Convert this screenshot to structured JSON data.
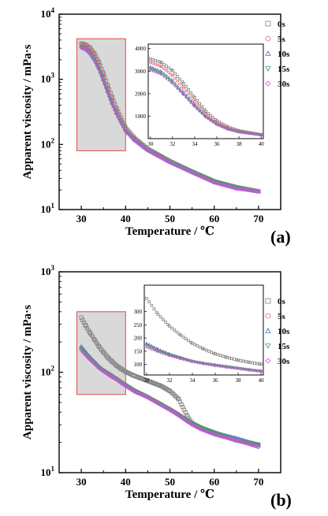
{
  "chart_data": [
    {
      "type": "scatter",
      "panel_label": "(a)",
      "xlabel": "Temperature / ℃",
      "ylabel": "Apparent viscosity / mPa·s",
      "y_scale": "log",
      "xlim": [
        25,
        75
      ],
      "ylim": [
        10,
        10000
      ],
      "x_ticks": [
        "30",
        "40",
        "50",
        "60",
        "70"
      ],
      "y_ticks": [
        {
          "base": "10",
          "exp": "1"
        },
        {
          "base": "10",
          "exp": "2"
        },
        {
          "base": "10",
          "exp": "3"
        },
        {
          "base": "10",
          "exp": "4"
        }
      ],
      "highlight_box": {
        "x": [
          29,
          40
        ],
        "y": [
          80,
          4200
        ]
      },
      "series": [
        {
          "name": "0s",
          "color": "#808080",
          "marker": "square",
          "x": [
            30,
            31,
            32,
            33,
            34,
            35,
            36,
            37,
            38,
            40,
            42,
            45,
            50,
            55,
            60,
            65,
            70
          ],
          "y": [
            3550,
            3380,
            3020,
            2450,
            1820,
            1220,
            790,
            520,
            350,
            180,
            125,
            85,
            55,
            38,
            27,
            22,
            19
          ]
        },
        {
          "name": "5s",
          "color": "#e8606a",
          "marker": "circle",
          "x": [
            30,
            31,
            32,
            33,
            34,
            35,
            36,
            37,
            38,
            40,
            42,
            45,
            50,
            55,
            60,
            65,
            70
          ],
          "y": [
            3400,
            3200,
            2800,
            2250,
            1650,
            1100,
            710,
            470,
            320,
            170,
            120,
            83,
            54,
            38,
            27,
            22,
            19
          ]
        },
        {
          "name": "10s",
          "color": "#4a6fd0",
          "marker": "triangle-up",
          "x": [
            30,
            31,
            32,
            33,
            34,
            35,
            36,
            37,
            38,
            40,
            42,
            45,
            50,
            55,
            60,
            65,
            70
          ],
          "y": [
            3200,
            2980,
            2580,
            2050,
            1500,
            1000,
            650,
            430,
            300,
            165,
            118,
            82,
            54,
            38,
            27,
            22,
            19
          ]
        },
        {
          "name": "15s",
          "color": "#3da35a",
          "marker": "triangle-down",
          "x": [
            30,
            31,
            32,
            33,
            34,
            35,
            36,
            37,
            38,
            40,
            42,
            45,
            50,
            55,
            60,
            65,
            70
          ],
          "y": [
            3100,
            2900,
            2500,
            1980,
            1450,
            970,
            630,
            420,
            295,
            163,
            117,
            82,
            54,
            38,
            27,
            22,
            19
          ]
        },
        {
          "name": "30s",
          "color": "#c35ad6",
          "marker": "diamond",
          "x": [
            30,
            31,
            32,
            33,
            34,
            35,
            36,
            37,
            38,
            40,
            42,
            45,
            50,
            55,
            60,
            65,
            70
          ],
          "y": [
            3050,
            2850,
            2450,
            1940,
            1420,
            950,
            620,
            415,
            292,
            162,
            116,
            81,
            53,
            37,
            26,
            21,
            19
          ]
        }
      ],
      "inset": {
        "xlim": [
          29.8,
          40.2
        ],
        "ylim": [
          0,
          4200
        ],
        "x_ticks": [
          "30",
          "32",
          "34",
          "36",
          "38",
          "40"
        ],
        "y_ticks": [
          "1000",
          "2000",
          "3000",
          "4000"
        ]
      }
    },
    {
      "type": "scatter",
      "panel_label": "(b)",
      "xlabel": "Temperature / ℃",
      "ylabel": "Apparent viscosity / mPa·s",
      "y_scale": "log",
      "xlim": [
        25,
        75
      ],
      "ylim": [
        10,
        1000
      ],
      "x_ticks": [
        "30",
        "40",
        "50",
        "60",
        "70"
      ],
      "y_ticks": [
        {
          "base": "10",
          "exp": "1"
        },
        {
          "base": "10",
          "exp": "2"
        },
        {
          "base": "10",
          "exp": "3"
        }
      ],
      "highlight_box": {
        "x": [
          29,
          40
        ],
        "y": [
          60,
          400
        ]
      },
      "series": [
        {
          "name": "0s",
          "color": "#808080",
          "marker": "square",
          "x": [
            30,
            31,
            32,
            33,
            34,
            35,
            36,
            37,
            38,
            39,
            40,
            42,
            45,
            48,
            50,
            52,
            54,
            55,
            57,
            60,
            65,
            70
          ],
          "y": [
            350,
            290,
            245,
            210,
            180,
            158,
            140,
            127,
            116,
            108,
            101,
            92,
            82,
            73,
            65,
            54,
            36,
            31,
            28,
            25,
            21,
            19
          ]
        },
        {
          "name": "5s",
          "color": "#e8606a",
          "marker": "circle",
          "x": [
            30,
            31,
            32,
            33,
            34,
            35,
            36,
            37,
            38,
            39,
            40,
            42,
            45,
            48,
            50,
            52,
            54,
            55,
            57,
            60,
            65,
            70
          ],
          "y": [
            175,
            155,
            138,
            125,
            112,
            104,
            98,
            92,
            86,
            80,
            75,
            66,
            57,
            48,
            43,
            38,
            33,
            31,
            28,
            25,
            21,
            19
          ]
        },
        {
          "name": "10s",
          "color": "#4a6fd0",
          "marker": "triangle-up",
          "x": [
            30,
            31,
            32,
            33,
            34,
            35,
            36,
            37,
            38,
            39,
            40,
            42,
            45,
            48,
            50,
            52,
            54,
            55,
            57,
            60,
            65,
            70
          ],
          "y": [
            180,
            158,
            140,
            126,
            113,
            105,
            98,
            92,
            86,
            80,
            75,
            66,
            57,
            48,
            43,
            38,
            33,
            31,
            28,
            25,
            22,
            19
          ]
        },
        {
          "name": "15s",
          "color": "#3da35a",
          "marker": "triangle-down",
          "x": [
            30,
            31,
            32,
            33,
            34,
            35,
            36,
            37,
            38,
            39,
            40,
            42,
            45,
            48,
            50,
            52,
            54,
            55,
            57,
            60,
            65,
            70
          ],
          "y": [
            172,
            152,
            136,
            123,
            111,
            103,
            96,
            90,
            85,
            79,
            74,
            65,
            56,
            48,
            42,
            37,
            33,
            31,
            28,
            25,
            21,
            19
          ]
        },
        {
          "name": "30s",
          "color": "#c35ad6",
          "marker": "diamond",
          "x": [
            30,
            31,
            32,
            33,
            34,
            35,
            36,
            37,
            38,
            39,
            40,
            42,
            45,
            48,
            50,
            52,
            54,
            55,
            57,
            60,
            65,
            70
          ],
          "y": [
            165,
            148,
            133,
            121,
            110,
            102,
            95,
            89,
            84,
            78,
            73,
            64,
            56,
            47,
            42,
            37,
            32,
            30,
            27,
            24,
            21,
            18
          ]
        }
      ],
      "inset": {
        "xlim": [
          29.8,
          40.2
        ],
        "ylim": [
          60,
          400
        ],
        "x_ticks": [
          "30",
          "32",
          "34",
          "36",
          "38",
          "40"
        ],
        "y_ticks": [
          "100",
          "150",
          "200",
          "250",
          "300"
        ]
      }
    }
  ]
}
